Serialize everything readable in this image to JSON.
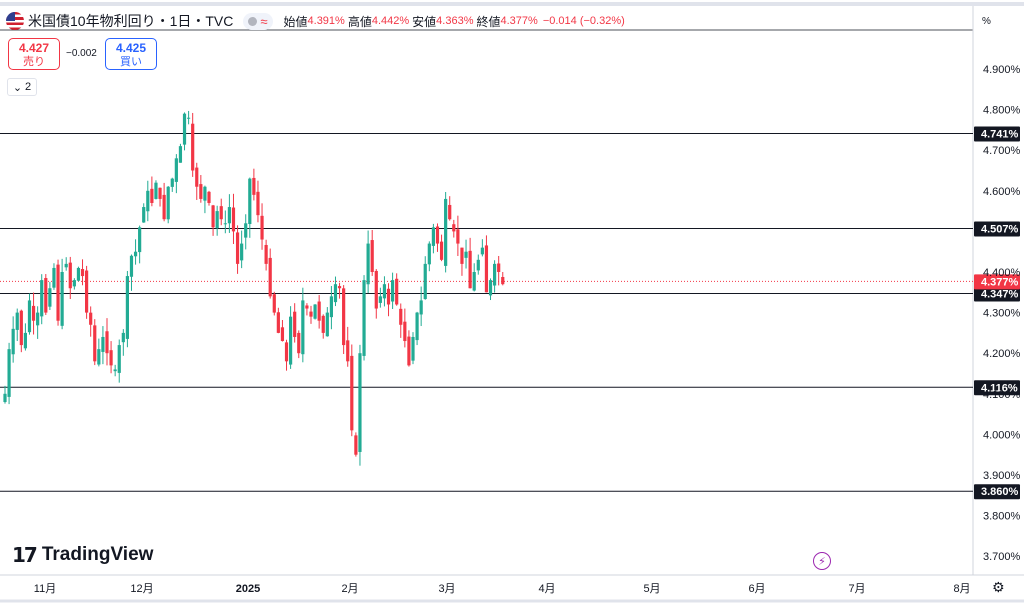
{
  "header": {
    "title": "米国債10年物利回り・1日・TVC",
    "approx_symbol": "≈",
    "open_label": "始値",
    "open_value": "4.391%",
    "high_label": "高値",
    "high_value": "4.442%",
    "low_label": "安値",
    "low_value": "4.363%",
    "close_label": "終値",
    "close_value": "4.377%",
    "change": "−0.014 (−0.32%)"
  },
  "trade": {
    "sell_price": "4.427",
    "sell_label": "売り",
    "spread": "−0.002",
    "buy_price": "4.425",
    "buy_label": "買い"
  },
  "indicator_count": "2",
  "axis_unit": "%",
  "branding": "TradingView",
  "colors": {
    "up": "#22ab94",
    "down": "#f23645",
    "level_line": "#131722",
    "last_price": "#f23645"
  },
  "chart_data": {
    "type": "candlestick",
    "y_ticks": [
      "4.900%",
      "4.800%",
      "4.700%",
      "4.600%",
      "4.400%",
      "4.300%",
      "4.200%",
      "4.100%",
      "4.000%",
      "3.900%",
      "3.800%",
      "3.700%"
    ],
    "y_tick_values": [
      4.9,
      4.8,
      4.7,
      4.6,
      4.4,
      4.3,
      4.2,
      4.1,
      4.0,
      3.9,
      3.8,
      3.7
    ],
    "ylim": [
      3.66,
      4.99
    ],
    "x_ticks": [
      "11月",
      "12月",
      "2025",
      "2月",
      "3月",
      "4月",
      "5月",
      "6月",
      "7月",
      "8月"
    ],
    "horizontal_levels": [
      {
        "value": 4.741,
        "label": "4.741%"
      },
      {
        "value": 4.507,
        "label": "4.507%"
      },
      {
        "value": 4.347,
        "label": "4.347%"
      },
      {
        "value": 4.116,
        "label": "4.116%"
      },
      {
        "value": 3.86,
        "label": "3.860%"
      }
    ],
    "last_price": {
      "value": 4.377,
      "label": "4.377%"
    },
    "close_path": [
      4.1,
      4.21,
      4.26,
      4.3,
      4.22,
      4.25,
      4.33,
      4.28,
      4.3,
      4.38,
      4.3,
      4.36,
      4.41,
      4.28,
      4.4,
      4.42,
      4.36,
      4.38,
      4.41,
      4.39,
      4.3,
      4.27,
      4.18,
      4.21,
      4.24,
      4.2,
      4.17,
      4.16,
      4.22,
      4.25,
      4.39,
      4.44,
      4.45,
      4.51,
      4.56,
      4.6,
      4.57,
      4.62,
      4.58,
      4.53,
      4.61,
      4.63,
      4.68,
      4.71,
      4.79,
      4.78,
      4.65,
      4.61,
      4.58,
      4.61,
      4.57,
      4.51,
      4.55,
      4.53,
      4.52,
      4.56,
      4.5,
      4.42,
      4.47,
      4.52,
      4.63,
      4.59,
      4.54,
      4.48,
      4.42,
      4.34,
      4.3,
      4.25,
      4.23,
      4.18,
      4.29,
      4.24,
      4.2,
      4.33,
      4.31,
      4.29,
      4.32,
      4.28,
      4.25,
      4.3,
      4.34,
      4.37,
      4.36,
      4.22,
      4.18,
      4.01,
      3.95,
      4.2,
      4.38,
      4.47,
      4.4,
      4.31,
      4.34,
      4.37,
      4.32,
      4.38,
      4.32,
      4.27,
      4.23,
      4.17,
      4.24,
      4.3,
      4.33,
      4.42,
      4.47,
      4.51,
      4.47,
      4.43,
      4.58,
      4.53,
      4.5,
      4.47,
      4.42,
      4.45,
      4.36,
      4.4,
      4.43,
      4.46,
      4.35,
      4.38,
      4.42,
      4.4,
      4.37
    ]
  }
}
